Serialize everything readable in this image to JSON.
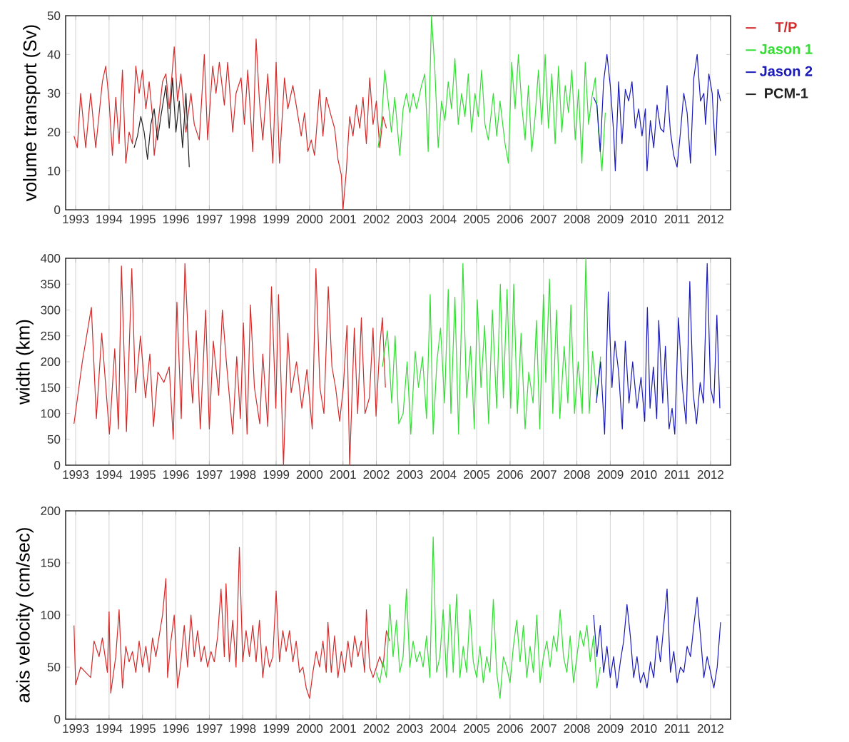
{
  "chart_data": [
    {
      "type": "line",
      "ylabel": "volume transport (Sv)",
      "xlim": [
        1992.7,
        2012.6
      ],
      "ylim": [
        0,
        50
      ],
      "xticks": [
        1993,
        1994,
        1995,
        1996,
        1997,
        1998,
        1999,
        2000,
        2001,
        2002,
        2003,
        2004,
        2005,
        2006,
        2007,
        2008,
        2009,
        2010,
        2011,
        2012
      ],
      "yticks": [
        0,
        10,
        20,
        30,
        40,
        50
      ],
      "grid": "x",
      "legend": "right",
      "series": [
        {
          "name": "T/P",
          "color": "#d42a2a",
          "x": [
            1992.95,
            1993.05,
            1993.15,
            1993.3,
            1993.45,
            1993.6,
            1993.8,
            1993.9,
            1994.0,
            1994.1,
            1994.2,
            1994.3,
            1994.4,
            1994.5,
            1994.6,
            1994.7,
            1994.8,
            1994.9,
            1995.0,
            1995.1,
            1995.2,
            1995.3,
            1995.35,
            1995.5,
            1995.6,
            1995.7,
            1995.8,
            1995.95,
            1996.05,
            1996.15,
            1996.3,
            1996.45,
            1996.55,
            1996.7,
            1996.85,
            1996.95,
            1997.1,
            1997.2,
            1997.3,
            1997.45,
            1997.55,
            1997.7,
            1997.8,
            1997.95,
            1998.05,
            1998.15,
            1998.3,
            1998.4,
            1998.5,
            1998.6,
            1998.75,
            1998.9,
            1999.0,
            1999.1,
            1999.25,
            1999.35,
            1999.5,
            1999.6,
            1999.75,
            1999.85,
            1999.95,
            2000.05,
            2000.15,
            2000.3,
            2000.4,
            2000.5,
            2000.65,
            2000.75,
            2000.85,
            2000.95,
            2001.0,
            2001.1,
            2001.2,
            2001.3,
            2001.4,
            2001.5,
            2001.6,
            2001.7,
            2001.8,
            2001.9,
            2002.0,
            2002.1,
            2002.2,
            2002.3
          ],
          "values": [
            19,
            16,
            30,
            16,
            30,
            16,
            33,
            37,
            28,
            14,
            29,
            17,
            36,
            12,
            20,
            17,
            37,
            30,
            36,
            26,
            33,
            24,
            14,
            25,
            33,
            35,
            26,
            42,
            28,
            35,
            20,
            30,
            22,
            18,
            40,
            18,
            37,
            30,
            38,
            27,
            38,
            20,
            30,
            34,
            22,
            36,
            15,
            44,
            28,
            18,
            35,
            12,
            38,
            12,
            34,
            26,
            32,
            27,
            19,
            25,
            15,
            18,
            14,
            31,
            19,
            29,
            24,
            21,
            13,
            9,
            0,
            10,
            24,
            19,
            27,
            21,
            29,
            17,
            34,
            22,
            28,
            16,
            24,
            21
          ]
        },
        {
          "name": "Jason 1",
          "color": "#33dd33",
          "x": [
            2002.05,
            2002.15,
            2002.25,
            2002.35,
            2002.45,
            2002.55,
            2002.7,
            2002.8,
            2002.9,
            2003.0,
            2003.1,
            2003.2,
            2003.35,
            2003.45,
            2003.55,
            2003.65,
            2003.75,
            2003.85,
            2003.95,
            2004.05,
            2004.15,
            2004.25,
            2004.35,
            2004.45,
            2004.55,
            2004.65,
            2004.75,
            2004.85,
            2004.95,
            2005.05,
            2005.15,
            2005.25,
            2005.35,
            2005.5,
            2005.6,
            2005.7,
            2005.85,
            2005.95,
            2006.05,
            2006.15,
            2006.25,
            2006.35,
            2006.45,
            2006.55,
            2006.65,
            2006.75,
            2006.85,
            2006.95,
            2007.05,
            2007.15,
            2007.25,
            2007.35,
            2007.45,
            2007.55,
            2007.65,
            2007.75,
            2007.85,
            2007.95,
            2008.05,
            2008.15,
            2008.25,
            2008.35,
            2008.45,
            2008.55,
            2008.65,
            2008.75,
            2008.85
          ],
          "values": [
            16,
            22,
            36,
            28,
            20,
            29,
            14,
            26,
            30,
            25,
            30,
            26,
            32,
            35,
            15,
            50,
            36,
            16,
            28,
            23,
            33,
            26,
            39,
            22,
            30,
            24,
            35,
            20,
            30,
            24,
            36,
            22,
            18,
            30,
            19,
            28,
            17,
            12,
            38,
            26,
            40,
            27,
            18,
            32,
            15,
            24,
            36,
            22,
            40,
            21,
            35,
            17,
            37,
            20,
            32,
            25,
            36,
            18,
            31,
            12,
            38,
            22,
            29,
            34,
            20,
            10,
            25
          ]
        },
        {
          "name": "Jason 2",
          "color": "#1a1ab8",
          "x": [
            2008.5,
            2008.6,
            2008.7,
            2008.8,
            2008.9,
            2009.0,
            2009.1,
            2009.15,
            2009.25,
            2009.35,
            2009.45,
            2009.55,
            2009.65,
            2009.75,
            2009.85,
            2009.95,
            2010.05,
            2010.1,
            2010.2,
            2010.3,
            2010.4,
            2010.5,
            2010.6,
            2010.7,
            2010.8,
            2010.9,
            2011.0,
            2011.1,
            2011.2,
            2011.3,
            2011.4,
            2011.5,
            2011.6,
            2011.7,
            2011.8,
            2011.85,
            2011.95,
            2012.05,
            2012.15,
            2012.22,
            2012.3
          ],
          "values": [
            29,
            27,
            15,
            33,
            40,
            32,
            20,
            10,
            33,
            17,
            31,
            28,
            33,
            21,
            26,
            19,
            26,
            10,
            23,
            16,
            27,
            21,
            20,
            32,
            20,
            14,
            11,
            20,
            30,
            25,
            12,
            34,
            40,
            28,
            30,
            22,
            35,
            30,
            14,
            31,
            28
          ]
        },
        {
          "name": "PCM-1",
          "color": "#222222",
          "x": [
            1994.75,
            1994.85,
            1994.95,
            1995.05,
            1995.15,
            1995.25,
            1995.35,
            1995.45,
            1995.55,
            1995.7,
            1995.8,
            1995.9,
            1996.0,
            1996.1,
            1996.2,
            1996.3,
            1996.4
          ],
          "values": [
            16,
            19,
            24,
            20,
            13,
            22,
            26,
            18,
            24,
            32,
            21,
            34,
            20,
            28,
            16,
            30,
            11
          ]
        }
      ]
    },
    {
      "type": "line",
      "ylabel": "width (km)",
      "xlim": [
        1992.7,
        2012.6
      ],
      "ylim": [
        0,
        400
      ],
      "xticks": [
        1993,
        1994,
        1995,
        1996,
        1997,
        1998,
        1999,
        2000,
        2001,
        2002,
        2003,
        2004,
        2005,
        2006,
        2007,
        2008,
        2009,
        2010,
        2011,
        2012
      ],
      "yticks": [
        0,
        50,
        100,
        150,
        200,
        250,
        300,
        350,
        400
      ],
      "grid": "x",
      "series": [
        {
          "color": "#d42a2a",
          "x": [
            1992.95,
            1993.2,
            1993.47,
            1993.62,
            1993.78,
            1994.01,
            1994.17,
            1994.28,
            1994.37,
            1994.52,
            1994.68,
            1994.79,
            1994.94,
            1995.09,
            1995.22,
            1995.33,
            1995.46,
            1995.64,
            1995.8,
            1995.92,
            1996.03,
            1996.16,
            1996.27,
            1996.36,
            1996.5,
            1996.61,
            1996.73,
            1996.89,
            1997.0,
            1997.12,
            1997.28,
            1997.39,
            1997.51,
            1997.7,
            1997.82,
            1997.93,
            1998.02,
            1998.13,
            1998.23,
            1998.35,
            1998.51,
            1998.6,
            1998.75,
            1998.86,
            1998.99,
            1999.07,
            1999.22,
            1999.35,
            1999.45,
            1999.61,
            1999.77,
            1999.92,
            2000.08,
            2000.19,
            2000.31,
            2000.43,
            2000.56,
            2000.67,
            2000.78,
            2000.9,
            2001.01,
            2001.12,
            2001.2,
            2001.34,
            2001.44,
            2001.55,
            2001.66,
            2001.79,
            2001.9,
            2001.99,
            2002.1,
            2002.18,
            2002.27
          ],
          "values": [
            80,
            200,
            305,
            90,
            255,
            60,
            225,
            70,
            385,
            65,
            380,
            140,
            250,
            130,
            215,
            75,
            180,
            160,
            190,
            50,
            315,
            90,
            390,
            260,
            120,
            260,
            70,
            300,
            70,
            240,
            135,
            300,
            200,
            60,
            210,
            90,
            275,
            60,
            310,
            150,
            80,
            215,
            75,
            345,
            110,
            330,
            0,
            255,
            140,
            200,
            110,
            185,
            70,
            380,
            150,
            100,
            345,
            190,
            150,
            85,
            150,
            270,
            0,
            265,
            100,
            285,
            100,
            130,
            265,
            95,
            230,
            285,
            150
          ]
        },
        {
          "color": "#33dd33",
          "x": [
            2002.18,
            2002.33,
            2002.46,
            2002.56,
            2002.67,
            2002.8,
            2002.92,
            2003.03,
            2003.16,
            2003.26,
            2003.38,
            2003.5,
            2003.61,
            2003.7,
            2003.81,
            2003.92,
            2004.04,
            2004.15,
            2004.23,
            2004.35,
            2004.46,
            2004.59,
            2004.7,
            2004.82,
            2004.93,
            2005.02,
            2005.13,
            2005.24,
            2005.36,
            2005.47,
            2005.6,
            2005.71,
            2005.8,
            2005.91,
            2006.02,
            2006.11,
            2006.22,
            2006.33,
            2006.45,
            2006.56,
            2006.69,
            2006.79,
            2006.89,
            2007.0,
            2007.07,
            2007.18,
            2007.28,
            2007.39,
            2007.49,
            2007.62,
            2007.73,
            2007.82,
            2007.93,
            2008.04,
            2008.16,
            2008.27,
            2008.37,
            2008.47,
            2008.6,
            2008.71
          ],
          "values": [
            190,
            260,
            120,
            250,
            80,
            100,
            200,
            60,
            220,
            150,
            210,
            90,
            330,
            60,
            200,
            265,
            120,
            340,
            100,
            325,
            60,
            390,
            130,
            230,
            70,
            320,
            150,
            270,
            80,
            300,
            110,
            350,
            130,
            340,
            110,
            350,
            100,
            255,
            70,
            180,
            120,
            280,
            70,
            330,
            160,
            360,
            100,
            300,
            90,
            230,
            120,
            310,
            100,
            200,
            100,
            400,
            100,
            220,
            130,
            210
          ]
        },
        {
          "color": "#1a1ab8",
          "x": [
            2008.58,
            2008.71,
            2008.83,
            2008.94,
            2009.05,
            2009.14,
            2009.25,
            2009.36,
            2009.45,
            2009.56,
            2009.67,
            2009.8,
            2009.92,
            2010.03,
            2010.11,
            2010.19,
            2010.29,
            2010.39,
            2010.45,
            2010.57,
            2010.65,
            2010.76,
            2010.85,
            2010.93,
            2011.04,
            2011.16,
            2011.27,
            2011.38,
            2011.48,
            2011.58,
            2011.69,
            2011.79,
            2011.9,
            2012.0,
            2012.1,
            2012.19,
            2012.28
          ],
          "values": [
            120,
            200,
            60,
            335,
            150,
            240,
            180,
            70,
            240,
            120,
            200,
            110,
            170,
            85,
            305,
            110,
            190,
            90,
            280,
            120,
            230,
            70,
            110,
            60,
            285,
            150,
            80,
            355,
            140,
            80,
            160,
            120,
            390,
            150,
            120,
            290,
            110
          ]
        }
      ]
    },
    {
      "type": "line",
      "ylabel": "axis velocity (cm/sec)",
      "xlim": [
        1992.7,
        2012.6
      ],
      "ylim": [
        0,
        200
      ],
      "xticks": [
        1993,
        1994,
        1995,
        1996,
        1997,
        1998,
        1999,
        2000,
        2001,
        2002,
        2003,
        2004,
        2005,
        2006,
        2007,
        2008,
        2009,
        2010,
        2011,
        2012
      ],
      "yticks": [
        0,
        50,
        100,
        150,
        200
      ],
      "grid": "x",
      "series": [
        {
          "color": "#d42a2a",
          "x": [
            1992.95,
            1993.0,
            1993.15,
            1993.3,
            1993.45,
            1993.55,
            1993.7,
            1993.8,
            1993.95,
            1994.0,
            1994.05,
            1994.2,
            1994.3,
            1994.4,
            1994.5,
            1994.6,
            1994.7,
            1994.8,
            1994.9,
            1995.0,
            1995.1,
            1995.2,
            1995.3,
            1995.4,
            1995.5,
            1995.6,
            1995.7,
            1995.75,
            1995.85,
            1995.95,
            1996.05,
            1996.15,
            1996.25,
            1996.35,
            1996.45,
            1996.55,
            1996.65,
            1996.75,
            1996.85,
            1996.95,
            1997.05,
            1997.15,
            1997.25,
            1997.35,
            1997.45,
            1997.5,
            1997.6,
            1997.7,
            1997.8,
            1997.9,
            1998.0,
            1998.1,
            1998.2,
            1998.3,
            1998.4,
            1998.5,
            1998.6,
            1998.7,
            1998.8,
            1998.9,
            1999.0,
            1999.1,
            1999.2,
            1999.3,
            1999.4,
            1999.5,
            1999.6,
            1999.7,
            1999.8,
            1999.9,
            2000.0,
            2000.1,
            2000.2,
            2000.3,
            2000.4,
            2000.5,
            2000.55,
            2000.65,
            2000.75,
            2000.85,
            2000.95,
            2001.05,
            2001.15,
            2001.25,
            2001.35,
            2001.45,
            2001.55,
            2001.65,
            2001.7,
            2001.8,
            2001.9,
            2002.0,
            2002.1,
            2002.2,
            2002.3,
            2002.4
          ],
          "values": [
            90,
            33,
            50,
            45,
            40,
            75,
            60,
            78,
            45,
            103,
            25,
            60,
            105,
            30,
            70,
            55,
            65,
            45,
            75,
            50,
            70,
            45,
            78,
            60,
            80,
            100,
            135,
            40,
            75,
            100,
            30,
            55,
            90,
            50,
            100,
            60,
            85,
            55,
            70,
            50,
            65,
            55,
            80,
            125,
            60,
            130,
            55,
            95,
            50,
            165,
            55,
            85,
            60,
            90,
            55,
            95,
            40,
            70,
            50,
            60,
            123,
            55,
            85,
            65,
            85,
            55,
            75,
            45,
            50,
            30,
            20,
            45,
            65,
            50,
            75,
            45,
            93,
            45,
            80,
            40,
            65,
            45,
            75,
            50,
            80,
            60,
            75,
            45,
            105,
            50,
            40,
            50,
            60,
            50,
            85,
            75
          ]
        },
        {
          "color": "#33dd33",
          "x": [
            2002.0,
            2002.1,
            2002.2,
            2002.3,
            2002.4,
            2002.5,
            2002.6,
            2002.7,
            2002.8,
            2002.9,
            2003.0,
            2003.1,
            2003.2,
            2003.3,
            2003.4,
            2003.5,
            2003.6,
            2003.7,
            2003.8,
            2003.9,
            2004.0,
            2004.1,
            2004.2,
            2004.3,
            2004.4,
            2004.5,
            2004.6,
            2004.7,
            2004.8,
            2004.9,
            2005.0,
            2005.1,
            2005.2,
            2005.3,
            2005.4,
            2005.5,
            2005.6,
            2005.7,
            2005.8,
            2005.9,
            2006.0,
            2006.1,
            2006.2,
            2006.3,
            2006.4,
            2006.5,
            2006.6,
            2006.7,
            2006.8,
            2006.9,
            2007.0,
            2007.1,
            2007.2,
            2007.3,
            2007.4,
            2007.5,
            2007.6,
            2007.7,
            2007.8,
            2007.9,
            2008.0,
            2008.1,
            2008.2,
            2008.3,
            2008.4,
            2008.5,
            2008.6,
            2008.7
          ],
          "values": [
            45,
            35,
            55,
            40,
            110,
            60,
            95,
            45,
            60,
            125,
            50,
            75,
            55,
            65,
            50,
            80,
            40,
            175,
            45,
            60,
            105,
            40,
            110,
            45,
            120,
            40,
            70,
            45,
            105,
            55,
            40,
            70,
            35,
            60,
            45,
            115,
            45,
            20,
            60,
            50,
            35,
            70,
            95,
            55,
            90,
            40,
            70,
            45,
            100,
            35,
            60,
            75,
            50,
            80,
            65,
            105,
            60,
            45,
            80,
            35,
            60,
            85,
            70,
            90,
            55,
            80,
            30,
            50
          ]
        },
        {
          "color": "#1a1ab8",
          "x": [
            2008.5,
            2008.6,
            2008.7,
            2008.8,
            2008.9,
            2009.0,
            2009.1,
            2009.2,
            2009.3,
            2009.4,
            2009.5,
            2009.6,
            2009.7,
            2009.8,
            2009.9,
            2010.0,
            2010.1,
            2010.2,
            2010.3,
            2010.4,
            2010.5,
            2010.6,
            2010.7,
            2010.8,
            2010.9,
            2011.0,
            2011.1,
            2011.2,
            2011.3,
            2011.4,
            2011.5,
            2011.6,
            2011.7,
            2011.8,
            2011.9,
            2012.0,
            2012.1,
            2012.2,
            2012.3
          ],
          "values": [
            100,
            60,
            90,
            45,
            70,
            40,
            60,
            30,
            55,
            75,
            110,
            80,
            40,
            60,
            35,
            45,
            30,
            55,
            40,
            80,
            55,
            90,
            125,
            45,
            65,
            35,
            50,
            45,
            70,
            60,
            90,
            117,
            80,
            40,
            60,
            45,
            30,
            50,
            93
          ]
        }
      ]
    }
  ]
}
